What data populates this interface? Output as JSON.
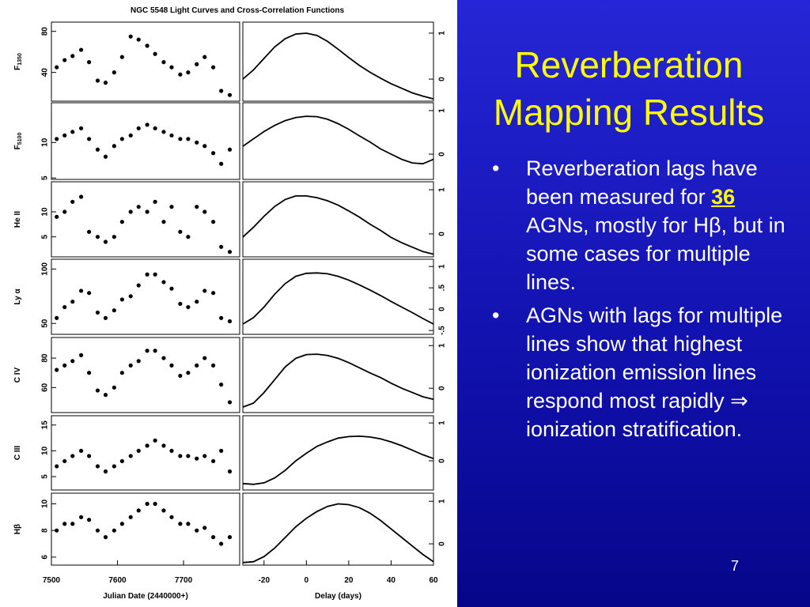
{
  "slide": {
    "title": "Reverberation Mapping Results",
    "bullets": [
      {
        "parts": [
          "Reverberation lags have been measured for ",
          "36",
          " AGNs, mostly for Hβ, but in some cases for multiple lines."
        ]
      },
      {
        "parts": [
          "AGNs with lags for multiple lines show that highest ionization emission lines respond most rapidly ⇒ ionization stratification."
        ]
      }
    ],
    "page_number": "7"
  },
  "figure": {
    "title": "NGC 5548 Light Curves and Cross-Correlation Functions"
  },
  "chart_data": [
    {
      "type": "scatter",
      "ylabel": "F",
      "ylabel_sub": "1350",
      "color": "#000000",
      "xlim": [
        7500,
        7785
      ],
      "ylim": [
        12,
        89
      ],
      "yticks": [
        40,
        80
      ],
      "x": [
        7508,
        7520,
        7532,
        7545,
        7557,
        7570,
        7582,
        7595,
        7607,
        7620,
        7632,
        7645,
        7657,
        7670,
        7682,
        7695,
        7707,
        7720,
        7732,
        7745,
        7757,
        7770
      ],
      "values": [
        45,
        52,
        56,
        62,
        50,
        32,
        30,
        40,
        55,
        75,
        72,
        66,
        58,
        50,
        45,
        38,
        40,
        48,
        55,
        45,
        22,
        18
      ]
    },
    {
      "type": "line",
      "color": "#000000",
      "xlim": [
        -30,
        60
      ],
      "ylim": [
        -0.48,
        1.24
      ],
      "yticks": [
        0,
        1
      ],
      "x": [
        -30,
        -25,
        -20,
        -15,
        -10,
        -5,
        0,
        5,
        10,
        15,
        20,
        25,
        30,
        35,
        40,
        45,
        50,
        55,
        60
      ],
      "values": [
        0,
        0.2,
        0.45,
        0.7,
        0.88,
        0.98,
        1.0,
        0.95,
        0.82,
        0.65,
        0.47,
        0.3,
        0.15,
        0.02,
        -0.1,
        -0.2,
        -0.3,
        -0.37,
        -0.43
      ]
    },
    {
      "type": "scatter",
      "ylabel": "F",
      "ylabel_sub": "5100",
      "color": "#000000",
      "xlim": [
        7500,
        7785
      ],
      "ylim": [
        4.8,
        15.6
      ],
      "yticks": [
        5,
        10
      ],
      "x": [
        7508,
        7520,
        7532,
        7545,
        7557,
        7570,
        7582,
        7595,
        7607,
        7620,
        7632,
        7645,
        7657,
        7670,
        7682,
        7695,
        7707,
        7720,
        7732,
        7745,
        7757,
        7770
      ],
      "values": [
        10.5,
        11,
        11.5,
        12,
        10.5,
        9,
        8,
        9.5,
        10.5,
        11,
        12,
        12.5,
        12,
        11.5,
        11,
        10.5,
        10.5,
        10,
        9.5,
        8.5,
        7,
        9
      ]
    },
    {
      "type": "line",
      "color": "#000000",
      "xlim": [
        -30,
        60
      ],
      "ylim": [
        -0.58,
        1.18
      ],
      "yticks": [
        0,
        1
      ],
      "x": [
        -30,
        -25,
        -20,
        -15,
        -10,
        -5,
        0,
        5,
        10,
        15,
        20,
        25,
        30,
        35,
        40,
        45,
        50,
        55,
        60
      ],
      "values": [
        0.18,
        0.35,
        0.52,
        0.66,
        0.77,
        0.84,
        0.87,
        0.86,
        0.8,
        0.7,
        0.57,
        0.42,
        0.28,
        0.12,
        0.0,
        -0.12,
        -0.2,
        -0.22,
        -0.12
      ]
    },
    {
      "type": "scatter",
      "ylabel": "He II",
      "color": "#000000",
      "xlim": [
        7500,
        7785
      ],
      "ylim": [
        1,
        16
      ],
      "yticks": [
        5,
        10
      ],
      "x": [
        7508,
        7520,
        7532,
        7545,
        7557,
        7570,
        7582,
        7595,
        7607,
        7620,
        7632,
        7645,
        7657,
        7670,
        7682,
        7695,
        7707,
        7720,
        7732,
        7745,
        7757,
        7770
      ],
      "values": [
        9,
        10,
        12,
        13,
        6,
        5,
        4,
        5,
        8,
        10,
        11,
        10,
        12,
        8,
        11,
        6,
        5,
        11,
        10,
        8,
        3,
        2
      ]
    },
    {
      "type": "line",
      "color": "#000000",
      "xlim": [
        -30,
        60
      ],
      "ylim": [
        -0.52,
        1.18
      ],
      "yticks": [
        0,
        1
      ],
      "x": [
        -30,
        -25,
        -20,
        -15,
        -10,
        -5,
        0,
        5,
        10,
        15,
        20,
        25,
        30,
        35,
        40,
        45,
        50,
        55,
        60
      ],
      "values": [
        -0.07,
        0.15,
        0.4,
        0.62,
        0.78,
        0.86,
        0.86,
        0.82,
        0.75,
        0.65,
        0.52,
        0.38,
        0.22,
        0.08,
        -0.08,
        -0.2,
        -0.3,
        -0.4,
        -0.46
      ]
    },
    {
      "type": "scatter",
      "ylabel": "Ly α",
      "color": "#000000",
      "xlim": [
        7500,
        7785
      ],
      "ylim": [
        40,
        109
      ],
      "yticks": [
        50,
        100
      ],
      "x": [
        7508,
        7520,
        7532,
        7545,
        7557,
        7570,
        7582,
        7595,
        7607,
        7620,
        7632,
        7645,
        7657,
        7670,
        7682,
        7695,
        7707,
        7720,
        7732,
        7745,
        7757,
        7770
      ],
      "values": [
        55,
        65,
        70,
        80,
        78,
        60,
        55,
        62,
        72,
        75,
        85,
        95,
        95,
        88,
        82,
        68,
        65,
        70,
        80,
        78,
        55,
        52
      ]
    },
    {
      "type": "line",
      "color": "#000000",
      "xlim": [
        -30,
        60
      ],
      "ylim": [
        -0.59,
        1.17
      ],
      "yticks": [
        {
          "value": -0.5,
          "label": "-.5"
        },
        0,
        {
          "value": 0.5,
          "label": ".5"
        },
        1
      ],
      "x": [
        -30,
        -25,
        -20,
        -15,
        -10,
        -5,
        0,
        5,
        10,
        15,
        20,
        25,
        30,
        35,
        40,
        45,
        50,
        55,
        60
      ],
      "values": [
        -0.35,
        -0.2,
        0.05,
        0.35,
        0.6,
        0.77,
        0.84,
        0.85,
        0.83,
        0.77,
        0.68,
        0.57,
        0.45,
        0.32,
        0.18,
        0.05,
        -0.08,
        -0.22,
        -0.35
      ]
    },
    {
      "type": "scatter",
      "ylabel": "C IV",
      "color": "#000000",
      "xlim": [
        7500,
        7785
      ],
      "ylim": [
        43,
        94
      ],
      "yticks": [
        60,
        80
      ],
      "x": [
        7508,
        7520,
        7532,
        7545,
        7557,
        7570,
        7582,
        7595,
        7607,
        7620,
        7632,
        7645,
        7657,
        7670,
        7682,
        7695,
        7707,
        7720,
        7732,
        7745,
        7757,
        7770
      ],
      "values": [
        72,
        75,
        78,
        82,
        70,
        58,
        55,
        60,
        70,
        75,
        78,
        85,
        85,
        80,
        75,
        68,
        70,
        75,
        80,
        75,
        62,
        50
      ]
    },
    {
      "type": "line",
      "color": "#000000",
      "xlim": [
        -30,
        60
      ],
      "ylim": [
        -0.57,
        1.19
      ],
      "yticks": [
        0,
        1
      ],
      "x": [
        -30,
        -25,
        -20,
        -15,
        -10,
        -5,
        0,
        5,
        10,
        15,
        20,
        25,
        30,
        35,
        40,
        45,
        50,
        55,
        60
      ],
      "values": [
        -0.44,
        -0.35,
        -0.1,
        0.2,
        0.5,
        0.7,
        0.79,
        0.8,
        0.77,
        0.7,
        0.6,
        0.48,
        0.36,
        0.25,
        0.12,
        0.0,
        -0.1,
        -0.2,
        -0.26
      ]
    },
    {
      "type": "scatter",
      "ylabel": "C III",
      "color": "#000000",
      "xlim": [
        7500,
        7785
      ],
      "ylim": [
        2.4,
        16.8
      ],
      "yticks": [
        5,
        10,
        15
      ],
      "x": [
        7508,
        7520,
        7532,
        7545,
        7557,
        7570,
        7582,
        7595,
        7607,
        7620,
        7632,
        7645,
        7657,
        7670,
        7682,
        7695,
        7707,
        7720,
        7732,
        7745,
        7757,
        7770
      ],
      "values": [
        7,
        8,
        9,
        10,
        9,
        7,
        6,
        7,
        8,
        9,
        10,
        11,
        12,
        11,
        10,
        9,
        9,
        8.5,
        9,
        8,
        10,
        6
      ]
    },
    {
      "type": "line",
      "color": "#000000",
      "xlim": [
        -30,
        60
      ],
      "ylim": [
        -0.77,
        1.19
      ],
      "yticks": [
        0,
        1
      ],
      "x": [
        -30,
        -25,
        -20,
        -15,
        -10,
        -5,
        0,
        5,
        10,
        15,
        20,
        25,
        30,
        35,
        40,
        45,
        50,
        55,
        60
      ],
      "values": [
        -0.6,
        -0.62,
        -0.58,
        -0.45,
        -0.25,
        0.0,
        0.2,
        0.38,
        0.5,
        0.6,
        0.64,
        0.65,
        0.63,
        0.58,
        0.5,
        0.4,
        0.28,
        0.16,
        0.06
      ]
    },
    {
      "type": "scatter",
      "ylabel": "Hβ",
      "color": "#000000",
      "xlim": [
        7500,
        7785
      ],
      "ylim": [
        5.4,
        10.8
      ],
      "yticks": [
        6,
        8,
        10
      ],
      "xticks": [
        7500,
        7600,
        7700
      ],
      "xlabel": "Julian Date (2440000+)",
      "x": [
        7508,
        7520,
        7532,
        7545,
        7557,
        7570,
        7582,
        7595,
        7607,
        7620,
        7632,
        7645,
        7657,
        7670,
        7682,
        7695,
        7707,
        7720,
        7732,
        7745,
        7757,
        7770
      ],
      "values": [
        8,
        8.5,
        8.5,
        9,
        8.8,
        8,
        7.5,
        8,
        8.5,
        9,
        9.5,
        10,
        10,
        9.5,
        9,
        8.5,
        8.5,
        8,
        8.2,
        7.5,
        7,
        7.5
      ]
    },
    {
      "type": "line",
      "color": "#000000",
      "xlim": [
        -30,
        60
      ],
      "ylim": [
        -0.5,
        1.19
      ],
      "yticks": [
        0,
        1
      ],
      "xticks": [
        -20,
        0,
        20,
        40,
        60
      ],
      "xlabel": "Delay (days)",
      "x": [
        -30,
        -25,
        -20,
        -15,
        -10,
        -5,
        0,
        5,
        10,
        15,
        20,
        25,
        30,
        35,
        40,
        45,
        50,
        55,
        60
      ],
      "values": [
        -0.44,
        -0.42,
        -0.3,
        -0.1,
        0.15,
        0.4,
        0.6,
        0.76,
        0.88,
        0.94,
        0.92,
        0.85,
        0.72,
        0.55,
        0.35,
        0.15,
        -0.05,
        -0.25,
        -0.42
      ]
    }
  ]
}
